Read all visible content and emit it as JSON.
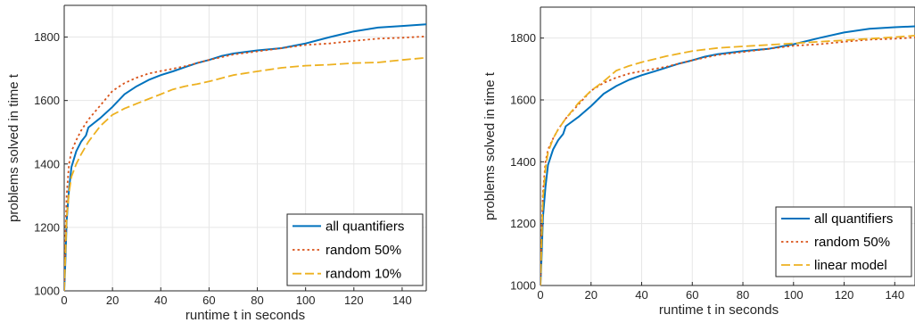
{
  "chart_data": [
    {
      "type": "line",
      "xlabel": "runtime t in seconds",
      "ylabel": "problems solved in time t",
      "xlim": [
        0,
        150
      ],
      "ylim": [
        1000,
        1900
      ],
      "xticks": [
        0,
        20,
        40,
        60,
        80,
        100,
        120,
        140
      ],
      "yticks": [
        1000,
        1200,
        1400,
        1600,
        1800
      ],
      "grid": true,
      "legend_position": "bottom-right",
      "series": [
        {
          "name": "all quantifiers",
          "color": "#0072BD",
          "style": "solid",
          "x": [
            0,
            0.5,
            1,
            2,
            3,
            5,
            7,
            9,
            10,
            15,
            20,
            25,
            30,
            35,
            40,
            45,
            50,
            55,
            60,
            65,
            70,
            80,
            90,
            100,
            110,
            120,
            130,
            140,
            150
          ],
          "y": [
            1000,
            1100,
            1220,
            1320,
            1390,
            1440,
            1470,
            1490,
            1515,
            1545,
            1580,
            1620,
            1645,
            1665,
            1680,
            1692,
            1705,
            1718,
            1728,
            1740,
            1748,
            1758,
            1765,
            1780,
            1800,
            1818,
            1830,
            1835,
            1840
          ]
        },
        {
          "name": "random 50%",
          "color": "#D95319",
          "style": "dotted",
          "x": [
            0,
            0.5,
            1,
            2,
            3,
            5,
            7,
            10,
            15,
            20,
            25,
            30,
            35,
            40,
            45,
            50,
            55,
            60,
            70,
            80,
            90,
            100,
            110,
            120,
            130,
            140,
            150
          ],
          "y": [
            1000,
            1180,
            1300,
            1400,
            1440,
            1475,
            1505,
            1540,
            1585,
            1630,
            1655,
            1672,
            1685,
            1693,
            1700,
            1708,
            1718,
            1728,
            1745,
            1755,
            1765,
            1775,
            1780,
            1788,
            1795,
            1798,
            1802
          ]
        },
        {
          "name": "random 10%",
          "color": "#EDB120",
          "style": "dashed",
          "x": [
            0,
            0.5,
            1,
            2,
            3,
            5,
            7,
            10,
            15,
            20,
            25,
            30,
            35,
            40,
            45,
            50,
            55,
            60,
            70,
            80,
            90,
            100,
            110,
            120,
            130,
            140,
            150
          ],
          "y": [
            1000,
            1120,
            1230,
            1310,
            1360,
            1400,
            1430,
            1470,
            1520,
            1555,
            1575,
            1590,
            1605,
            1620,
            1635,
            1645,
            1652,
            1660,
            1680,
            1692,
            1703,
            1710,
            1713,
            1718,
            1720,
            1728,
            1735
          ]
        }
      ]
    },
    {
      "type": "line",
      "xlabel": "runtime t in seconds",
      "ylabel": "problems solved in time t",
      "xlim": [
        0,
        148
      ],
      "ylim": [
        1000,
        1900
      ],
      "xticks": [
        0,
        20,
        40,
        60,
        80,
        100,
        120,
        140
      ],
      "yticks": [
        1000,
        1200,
        1400,
        1600,
        1800
      ],
      "grid": true,
      "legend_position": "bottom-right",
      "series": [
        {
          "name": "all quantifiers",
          "color": "#0072BD",
          "style": "solid",
          "x": [
            0,
            0.5,
            1,
            2,
            3,
            5,
            7,
            9,
            10,
            15,
            20,
            25,
            30,
            35,
            40,
            45,
            50,
            55,
            60,
            65,
            70,
            80,
            90,
            100,
            110,
            120,
            130,
            140,
            148
          ],
          "y": [
            1000,
            1100,
            1220,
            1320,
            1390,
            1440,
            1470,
            1490,
            1515,
            1545,
            1580,
            1620,
            1645,
            1665,
            1680,
            1692,
            1705,
            1718,
            1728,
            1740,
            1748,
            1758,
            1765,
            1780,
            1800,
            1818,
            1830,
            1835,
            1838
          ]
        },
        {
          "name": "random 50%",
          "color": "#D95319",
          "style": "dotted",
          "x": [
            0,
            0.5,
            1,
            2,
            3,
            5,
            7,
            10,
            15,
            20,
            25,
            30,
            35,
            40,
            45,
            50,
            55,
            60,
            70,
            80,
            90,
            100,
            110,
            120,
            130,
            140,
            148
          ],
          "y": [
            1000,
            1180,
            1300,
            1400,
            1440,
            1475,
            1505,
            1540,
            1585,
            1630,
            1655,
            1672,
            1685,
            1693,
            1700,
            1708,
            1718,
            1728,
            1745,
            1755,
            1765,
            1775,
            1780,
            1788,
            1795,
            1798,
            1802
          ]
        },
        {
          "name": "linear model",
          "color": "#EDB120",
          "style": "dashed",
          "x": [
            0,
            0.5,
            1,
            2,
            3,
            5,
            7,
            10,
            15,
            20,
            25,
            30,
            35,
            40,
            50,
            60,
            70,
            80,
            90,
            100,
            110,
            120,
            130,
            140,
            148
          ],
          "y": [
            1000,
            1150,
            1280,
            1380,
            1430,
            1475,
            1505,
            1540,
            1590,
            1630,
            1660,
            1695,
            1710,
            1722,
            1742,
            1758,
            1768,
            1773,
            1778,
            1783,
            1788,
            1793,
            1798,
            1803,
            1808
          ]
        }
      ]
    }
  ]
}
